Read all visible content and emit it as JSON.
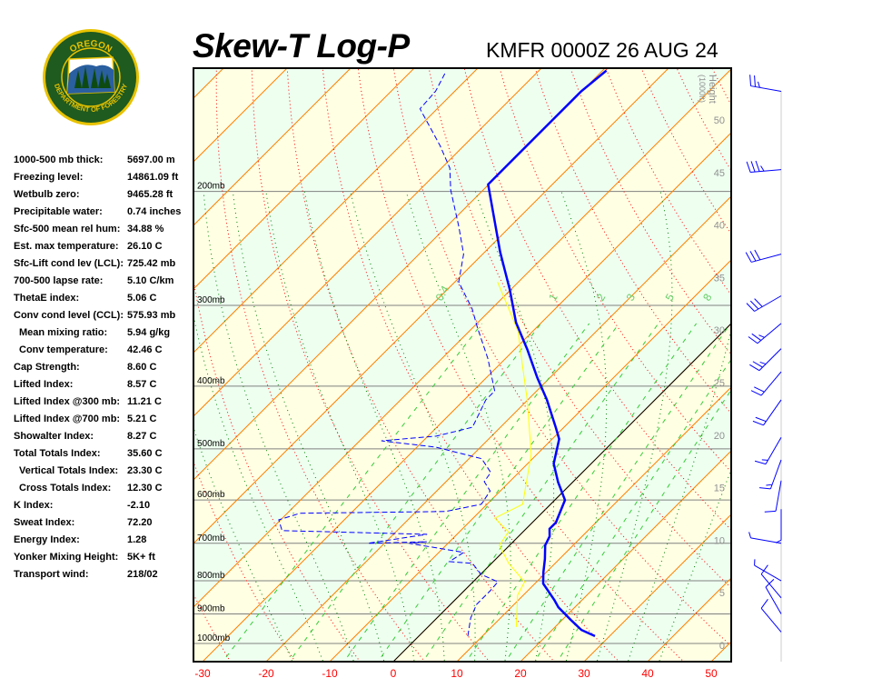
{
  "logo": {
    "top_text": "OREGON",
    "bottom_text": "DEPARTMENT OF FORESTRY"
  },
  "header": {
    "title": "Skew-T Log-P",
    "subtitle": "KMFR 0000Z 26 AUG 24"
  },
  "stats": [
    {
      "label": "1000-500 mb thick:",
      "value": "5697.00 m"
    },
    {
      "label": "Freezing level:",
      "value": "14861.09 ft"
    },
    {
      "label": "Wetbulb zero:",
      "value": "9465.28 ft"
    },
    {
      "label": "Precipitable water:",
      "value": "0.74 inches"
    },
    {
      "label": "Sfc-500 mean rel hum:",
      "value": "34.88 %"
    },
    {
      "label": "Est. max temperature:",
      "value": "26.10 C"
    },
    {
      "label": "Sfc-Lift cond lev (LCL):",
      "value": "725.42 mb"
    },
    {
      "label": "700-500 lapse rate:",
      "value": "5.10 C/km"
    },
    {
      "label": "ThetaE index:",
      "value": "5.06 C"
    },
    {
      "label": "Conv cond level (CCL):",
      "value": "575.93 mb"
    },
    {
      "label": "Mean mixing ratio:",
      "value": "5.94 g/kg",
      "indent": true
    },
    {
      "label": "Conv temperature:",
      "value": "42.46 C",
      "indent": true
    },
    {
      "label": "Cap Strength:",
      "value": "8.60 C"
    },
    {
      "label": "Lifted Index:",
      "value": "8.57 C"
    },
    {
      "label": "Lifted Index @300 mb:",
      "value": "11.21 C"
    },
    {
      "label": "Lifted Index @700 mb:",
      "value": "5.21 C"
    },
    {
      "label": "Showalter Index:",
      "value": "8.27 C"
    },
    {
      "label": "Total Totals Index:",
      "value": "35.60 C"
    },
    {
      "label": "Vertical Totals Index:",
      "value": "23.30 C",
      "indent": true
    },
    {
      "label": "Cross Totals Index:",
      "value": "12.30 C",
      "indent": true
    },
    {
      "label": "K Index:",
      "value": "-2.10"
    },
    {
      "label": "Sweat Index:",
      "value": "72.20"
    },
    {
      "label": "Energy Index:",
      "value": "1.28"
    },
    {
      "label": "Yonker Mixing Height:",
      "value": "5K+ ft"
    },
    {
      "label": "Transport wind:",
      "value": "218/02"
    }
  ],
  "chart_data": {
    "type": "skew-t",
    "title": "Skew-T Log-P",
    "subtitle": "KMFR 0000Z 26 AUG 24",
    "x_axis": {
      "ticks": [
        -30,
        -20,
        -10,
        0,
        10,
        20,
        30,
        40,
        50
      ],
      "tick_color": "#ff0000"
    },
    "pressure_levels": [
      {
        "p": 1000,
        "label": "1000mb"
      },
      {
        "p": 900,
        "label": "900mb"
      },
      {
        "p": 800,
        "label": "800mb"
      },
      {
        "p": 700,
        "label": "700mb"
      },
      {
        "p": 600,
        "label": "600mb"
      },
      {
        "p": 500,
        "label": "500mb"
      },
      {
        "p": 400,
        "label": "400mb"
      },
      {
        "p": 300,
        "label": "300mb"
      },
      {
        "p": 200,
        "label": "200mb"
      }
    ],
    "pressure_range": [
      1000,
      129
    ],
    "height_axis": {
      "title": "Height",
      "unit": "(1000ft)",
      "ticks": [
        0,
        5,
        10,
        15,
        20,
        25,
        30,
        35,
        40,
        45,
        50
      ]
    },
    "mixing_ratio_labels": [
      "0.4",
      "1",
      "2",
      "3",
      "5",
      "8"
    ],
    "mixing_ratios": [
      0.4,
      1,
      2,
      3,
      5,
      8,
      12,
      16,
      20
    ],
    "colors": {
      "temperature": "#0000ff",
      "dewpoint": "#0000ff",
      "parcel": "#ffff00",
      "isotherm": "#ff8000",
      "dry_adiabat": "#ff0000",
      "moist_adiabat": "#008000",
      "mixing_ratio": "#33cc33",
      "band_a": "#ffffe4",
      "band_b": "#eefff0",
      "zero_isotherm": "#000000"
    },
    "temperature": [
      {
        "p": 974,
        "t": 27.7
      },
      {
        "p": 953,
        "t": 24.6
      },
      {
        "p": 919,
        "t": 21.3
      },
      {
        "p": 879,
        "t": 17.4
      },
      {
        "p": 856,
        "t": 15.6
      },
      {
        "p": 808,
        "t": 11.3
      },
      {
        "p": 777,
        "t": 9.6
      },
      {
        "p": 740,
        "t": 7.7
      },
      {
        "p": 705,
        "t": 5.6
      },
      {
        "p": 683,
        "t": 4.9
      },
      {
        "p": 665,
        "t": 3.7
      },
      {
        "p": 650,
        "t": 3.7
      },
      {
        "p": 600,
        "t": 1.6
      },
      {
        "p": 563,
        "t": -2.3
      },
      {
        "p": 527,
        "t": -5.9
      },
      {
        "p": 483,
        "t": -8.9
      },
      {
        "p": 463,
        "t": -11.3
      },
      {
        "p": 420,
        "t": -17
      },
      {
        "p": 388,
        "t": -22
      },
      {
        "p": 351,
        "t": -28
      },
      {
        "p": 319,
        "t": -34
      },
      {
        "p": 284,
        "t": -40.1
      },
      {
        "p": 248,
        "t": -47.6
      },
      {
        "p": 195,
        "t": -60.1
      },
      {
        "p": 181,
        "t": -60.1
      },
      {
        "p": 157,
        "t": -60.1
      },
      {
        "p": 140,
        "t": -60.1
      },
      {
        "p": 130,
        "t": -59.4
      }
    ],
    "dewpoint": [
      {
        "p": 974,
        "t": 7.7
      },
      {
        "p": 913,
        "t": 5.3
      },
      {
        "p": 870,
        "t": 4.1
      },
      {
        "p": 829,
        "t": 4.1
      },
      {
        "p": 803,
        "t": 3.9
      },
      {
        "p": 782,
        "t": 0.1
      },
      {
        "p": 752,
        "t": -3.0
      },
      {
        "p": 747,
        "t": -6.9
      },
      {
        "p": 723,
        "t": -6.1
      },
      {
        "p": 700,
        "t": -16.1
      },
      {
        "p": 696,
        "t": -13.6
      },
      {
        "p": 700,
        "t": -22.6
      },
      {
        "p": 678,
        "t": -14.7
      },
      {
        "p": 669,
        "t": -38.1
      },
      {
        "p": 644,
        "t": -40.3
      },
      {
        "p": 629,
        "t": -38
      },
      {
        "p": 625,
        "t": -15.4
      },
      {
        "p": 609,
        "t": -10.9
      },
      {
        "p": 581,
        "t": -11.6
      },
      {
        "p": 562,
        "t": -14
      },
      {
        "p": 544,
        "t": -14.4
      },
      {
        "p": 518,
        "t": -18
      },
      {
        "p": 497,
        "t": -27
      },
      {
        "p": 486,
        "t": -36.6
      },
      {
        "p": 478,
        "t": -28.7
      },
      {
        "p": 463,
        "t": -24.4
      },
      {
        "p": 420,
        "t": -26.6
      },
      {
        "p": 407,
        "t": -26.6
      },
      {
        "p": 363,
        "t": -32.7
      },
      {
        "p": 324,
        "t": -39.4
      },
      {
        "p": 304,
        "t": -43
      },
      {
        "p": 276,
        "t": -49.4
      },
      {
        "p": 250,
        "t": -53
      },
      {
        "p": 227,
        "t": -58
      },
      {
        "p": 199,
        "t": -65.1
      },
      {
        "p": 184,
        "t": -68.7
      },
      {
        "p": 170,
        "t": -73.7
      },
      {
        "p": 149,
        "t": -82.7
      },
      {
        "p": 140,
        "t": -83
      },
      {
        "p": 131,
        "t": -84.4
      }
    ],
    "parcel": [
      {
        "p": 943,
        "t": 13.9
      },
      {
        "p": 842,
        "t": 9.1
      },
      {
        "p": 803,
        "t": 8.1
      },
      {
        "p": 752,
        "t": 2.7
      },
      {
        "p": 705,
        "t": -1.6
      },
      {
        "p": 672,
        "t": -2.3
      },
      {
        "p": 640,
        "t": -6.6
      },
      {
        "p": 609,
        "t": -4.4
      },
      {
        "p": 510,
        "t": -10.9
      },
      {
        "p": 420,
        "t": -20.1
      },
      {
        "p": 369,
        "t": -26.6
      },
      {
        "p": 329,
        "t": -32.3
      },
      {
        "p": 276,
        "t": -43.3
      }
    ],
    "wind_barbs": [
      {
        "p": 140,
        "dir": 280,
        "spd": 25
      },
      {
        "p": 185,
        "dir": 265,
        "spd": 35
      },
      {
        "p": 250,
        "dir": 255,
        "spd": 30
      },
      {
        "p": 290,
        "dir": 240,
        "spd": 30
      },
      {
        "p": 320,
        "dir": 230,
        "spd": 25
      },
      {
        "p": 350,
        "dir": 225,
        "spd": 25
      },
      {
        "p": 380,
        "dir": 220,
        "spd": 20
      },
      {
        "p": 420,
        "dir": 215,
        "spd": 20
      },
      {
        "p": 480,
        "dir": 210,
        "spd": 15
      },
      {
        "p": 520,
        "dir": 200,
        "spd": 15
      },
      {
        "p": 560,
        "dir": 190,
        "spd": 10
      },
      {
        "p": 620,
        "dir": 180,
        "spd": 5
      },
      {
        "p": 700,
        "dir": 280,
        "spd": 5
      },
      {
        "p": 800,
        "dir": 300,
        "spd": 5
      },
      {
        "p": 850,
        "dir": 320,
        "spd": 10
      },
      {
        "p": 900,
        "dir": 330,
        "spd": 10
      },
      {
        "p": 960,
        "dir": 320,
        "spd": 10
      }
    ]
  }
}
